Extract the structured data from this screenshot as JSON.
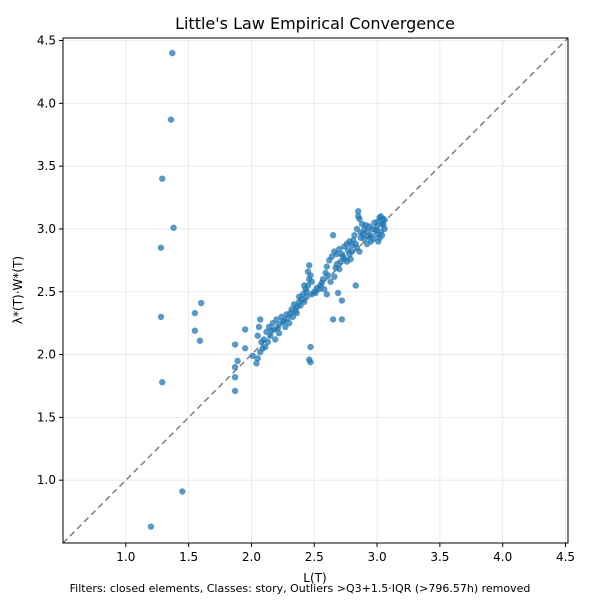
{
  "chart_data": {
    "type": "scatter",
    "title": "Little's Law Empirical Convergence",
    "xlabel": "L(T)",
    "ylabel": "λ*(T)·W*(T)",
    "footnote": "Filters: closed elements, Classes: story, Outliers >Q3+1.5·IQR (>796.57h) removed",
    "xlim": [
      0.5,
      4.52
    ],
    "ylim": [
      0.5,
      4.52
    ],
    "xticks": [
      "1.0",
      "1.5",
      "2.0",
      "2.5",
      "3.0",
      "3.5",
      "4.0",
      "4.5"
    ],
    "yticks": [
      "1.0",
      "1.5",
      "2.0",
      "2.5",
      "3.0",
      "3.5",
      "4.0",
      "4.5"
    ],
    "grid": true,
    "reference_line": "y = x (dashed)",
    "colors": {
      "points": "#1f77b4",
      "reference_line": "#7f7f7f",
      "grid": "#e6e6e6"
    },
    "points": [
      [
        1.37,
        4.4
      ],
      [
        1.36,
        3.87
      ],
      [
        1.29,
        3.4
      ],
      [
        1.38,
        3.01
      ],
      [
        1.28,
        2.85
      ],
      [
        1.28,
        2.3
      ],
      [
        1.29,
        1.78
      ],
      [
        1.45,
        0.91
      ],
      [
        1.2,
        0.63
      ],
      [
        1.55,
        2.33
      ],
      [
        1.6,
        2.41
      ],
      [
        1.55,
        2.19
      ],
      [
        1.59,
        2.11
      ],
      [
        1.87,
        2.08
      ],
      [
        1.89,
        1.95
      ],
      [
        1.87,
        1.9
      ],
      [
        1.87,
        1.82
      ],
      [
        1.87,
        1.71
      ],
      [
        1.95,
        2.2
      ],
      [
        1.95,
        2.05
      ],
      [
        2.01,
        1.99
      ],
      [
        2.04,
        1.93
      ],
      [
        2.05,
        1.97
      ],
      [
        2.05,
        2.15
      ],
      [
        2.06,
        2.22
      ],
      [
        2.07,
        2.28
      ],
      [
        2.08,
        2.1
      ],
      [
        2.09,
        2.05
      ],
      [
        2.1,
        2.12
      ],
      [
        2.12,
        2.18
      ],
      [
        2.14,
        2.22
      ],
      [
        2.15,
        2.15
      ],
      [
        2.17,
        2.25
      ],
      [
        2.18,
        2.2
      ],
      [
        2.2,
        2.28
      ],
      [
        2.22,
        2.24
      ],
      [
        2.24,
        2.3
      ],
      [
        2.26,
        2.27
      ],
      [
        2.28,
        2.32
      ],
      [
        2.3,
        2.25
      ],
      [
        2.32,
        2.36
      ],
      [
        2.34,
        2.4
      ],
      [
        2.36,
        2.38
      ],
      [
        2.38,
        2.46
      ],
      [
        2.4,
        2.44
      ],
      [
        2.41,
        2.48
      ],
      [
        2.43,
        2.52
      ],
      [
        2.45,
        2.55
      ],
      [
        2.46,
        2.6
      ],
      [
        2.45,
        2.66
      ],
      [
        2.46,
        2.71
      ],
      [
        2.47,
        2.63
      ],
      [
        2.48,
        2.58
      ],
      [
        2.42,
        2.55
      ],
      [
        2.44,
        2.5
      ],
      [
        2.5,
        2.5
      ],
      [
        2.52,
        2.53
      ],
      [
        2.55,
        2.55
      ],
      [
        2.57,
        2.6
      ],
      [
        2.59,
        2.65
      ],
      [
        2.6,
        2.7
      ],
      [
        2.62,
        2.75
      ],
      [
        2.64,
        2.78
      ],
      [
        2.65,
        2.95
      ],
      [
        2.66,
        2.82
      ],
      [
        2.68,
        2.8
      ],
      [
        2.7,
        2.84
      ],
      [
        2.72,
        2.8
      ],
      [
        2.74,
        2.86
      ],
      [
        2.76,
        2.88
      ],
      [
        2.78,
        2.9
      ],
      [
        2.8,
        2.87
      ],
      [
        2.82,
        2.95
      ],
      [
        2.84,
        3.0
      ],
      [
        2.85,
        3.14
      ],
      [
        2.86,
        3.08
      ],
      [
        2.87,
        2.97
      ],
      [
        2.88,
        3.04
      ],
      [
        2.9,
        3.0
      ],
      [
        2.92,
        2.98
      ],
      [
        2.94,
        3.02
      ],
      [
        2.95,
        2.95
      ],
      [
        2.96,
        3.0
      ],
      [
        2.98,
        3.05
      ],
      [
        3.0,
        3.02
      ],
      [
        3.01,
        3.06
      ],
      [
        3.02,
        3.09
      ],
      [
        3.03,
        2.98
      ],
      [
        3.04,
        3.04
      ],
      [
        3.05,
        3.08
      ],
      [
        3.06,
        3.0
      ],
      [
        2.84,
        2.85
      ],
      [
        2.86,
        2.82
      ],
      [
        2.83,
        2.55
      ],
      [
        2.69,
        2.49
      ],
      [
        2.72,
        2.43
      ],
      [
        2.72,
        2.28
      ],
      [
        2.65,
        2.28
      ],
      [
        2.47,
        2.06
      ],
      [
        2.46,
        1.96
      ],
      [
        2.47,
        1.94
      ],
      [
        2.58,
        2.52
      ],
      [
        2.6,
        2.48
      ],
      [
        2.63,
        2.58
      ],
      [
        2.66,
        2.62
      ],
      [
        2.68,
        2.72
      ],
      [
        2.7,
        2.68
      ],
      [
        2.74,
        2.76
      ],
      [
        2.76,
        2.74
      ],
      [
        2.78,
        2.8
      ],
      [
        2.8,
        2.82
      ],
      [
        2.9,
        2.92
      ],
      [
        2.92,
        2.88
      ],
      [
        2.95,
        2.9
      ],
      [
        2.97,
        2.92
      ],
      [
        3.0,
        2.96
      ],
      [
        3.02,
        2.93
      ],
      [
        3.04,
        2.95
      ],
      [
        2.38,
        2.42
      ],
      [
        2.36,
        2.33
      ],
      [
        2.33,
        2.3
      ],
      [
        2.27,
        2.22
      ],
      [
        2.22,
        2.17
      ],
      [
        2.19,
        2.12
      ],
      [
        2.13,
        2.1
      ],
      [
        2.11,
        2.06
      ],
      [
        2.07,
        2.02
      ],
      [
        2.16,
        2.19
      ],
      [
        2.21,
        2.21
      ],
      [
        2.25,
        2.26
      ],
      [
        2.29,
        2.29
      ],
      [
        2.31,
        2.33
      ],
      [
        2.35,
        2.35
      ],
      [
        2.39,
        2.39
      ],
      [
        2.42,
        2.42
      ],
      [
        2.44,
        2.46
      ],
      [
        2.48,
        2.48
      ],
      [
        2.51,
        2.49
      ],
      [
        2.54,
        2.52
      ],
      [
        2.56,
        2.57
      ],
      [
        2.61,
        2.63
      ],
      [
        2.67,
        2.69
      ],
      [
        2.71,
        2.74
      ],
      [
        2.73,
        2.78
      ],
      [
        2.77,
        2.83
      ],
      [
        2.79,
        2.76
      ],
      [
        2.81,
        2.91
      ],
      [
        2.83,
        2.88
      ],
      [
        2.87,
        2.93
      ],
      [
        2.89,
        2.96
      ],
      [
        2.91,
        3.03
      ],
      [
        2.93,
        2.94
      ],
      [
        2.99,
        2.99
      ],
      [
        3.01,
        2.9
      ],
      [
        3.05,
        3.03
      ],
      [
        3.06,
        3.07
      ],
      [
        3.03,
        3.1
      ],
      [
        2.85,
        3.1
      ]
    ]
  }
}
